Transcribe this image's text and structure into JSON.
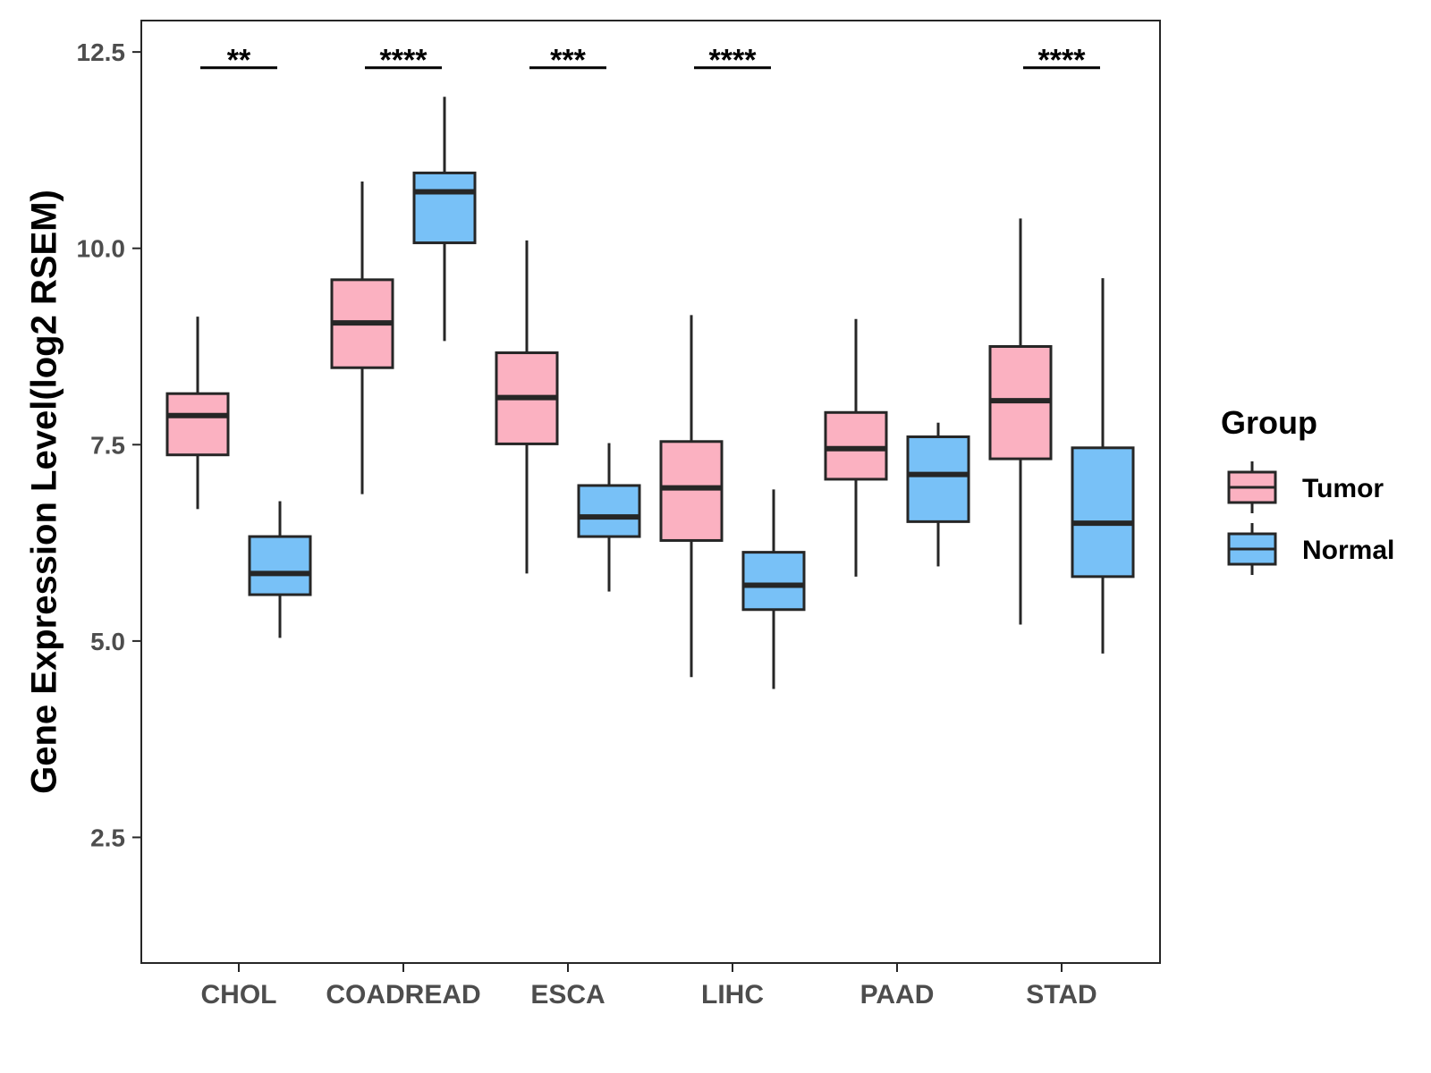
{
  "chart_data": {
    "type": "boxplot",
    "title": "",
    "xlabel": "",
    "ylabel": "Gene Expression Level(log2 RSEM)",
    "ylim": [
      0.9,
      12.9
    ],
    "yticks": [
      2.5,
      5.0,
      7.5,
      10.0,
      12.5
    ],
    "ytick_labels": [
      "2.5",
      "5.0",
      "7.5",
      "10.0",
      "12.5"
    ],
    "grid": false,
    "categories": [
      "CHOL",
      "COADREAD",
      "ESCA",
      "LIHC",
      "PAAD",
      "STAD"
    ],
    "legend": {
      "title": "Group",
      "position": "right",
      "entries": [
        "Tumor",
        "Normal"
      ]
    },
    "colors": {
      "Tumor": "#FBB1C1",
      "Normal": "#78C1F7",
      "outline": "#262626"
    },
    "series": [
      {
        "name": "Tumor",
        "boxes": [
          {
            "category": "CHOL",
            "min": 6.68,
            "q1": 7.37,
            "median": 7.87,
            "q3": 8.15,
            "max": 9.13
          },
          {
            "category": "COADREAD",
            "min": 6.87,
            "q1": 8.48,
            "median": 9.05,
            "q3": 9.6,
            "max": 10.85
          },
          {
            "category": "ESCA",
            "min": 5.86,
            "q1": 7.51,
            "median": 8.1,
            "q3": 8.67,
            "max": 10.1
          },
          {
            "category": "LIHC",
            "min": 4.54,
            "q1": 6.28,
            "median": 6.95,
            "q3": 7.54,
            "max": 9.15
          },
          {
            "category": "PAAD",
            "min": 5.82,
            "q1": 7.06,
            "median": 7.45,
            "q3": 7.91,
            "max": 9.1
          },
          {
            "category": "STAD",
            "min": 5.21,
            "q1": 7.32,
            "median": 8.06,
            "q3": 8.75,
            "max": 10.38
          }
        ]
      },
      {
        "name": "Normal",
        "boxes": [
          {
            "category": "CHOL",
            "min": 5.04,
            "q1": 5.59,
            "median": 5.86,
            "q3": 6.33,
            "max": 6.78
          },
          {
            "category": "COADREAD",
            "min": 8.82,
            "q1": 10.07,
            "median": 10.72,
            "q3": 10.96,
            "max": 11.93
          },
          {
            "category": "ESCA",
            "min": 5.63,
            "q1": 6.33,
            "median": 6.58,
            "q3": 6.98,
            "max": 7.52
          },
          {
            "category": "LIHC",
            "min": 4.39,
            "q1": 5.4,
            "median": 5.71,
            "q3": 6.13,
            "max": 6.93
          },
          {
            "category": "PAAD",
            "min": 5.95,
            "q1": 6.52,
            "median": 7.12,
            "q3": 7.6,
            "max": 7.78
          },
          {
            "category": "STAD",
            "min": 4.84,
            "q1": 5.82,
            "median": 6.5,
            "q3": 7.46,
            "max": 9.62
          }
        ]
      }
    ],
    "significance": [
      {
        "category": "CHOL",
        "label": "**",
        "y": 12.3
      },
      {
        "category": "COADREAD",
        "label": "****",
        "y": 12.3
      },
      {
        "category": "ESCA",
        "label": "***",
        "y": 12.3
      },
      {
        "category": "LIHC",
        "label": "****",
        "y": 12.3
      },
      {
        "category": "PAAD",
        "label": "",
        "y": 12.3
      },
      {
        "category": "STAD",
        "label": "****",
        "y": 12.3
      }
    ]
  }
}
